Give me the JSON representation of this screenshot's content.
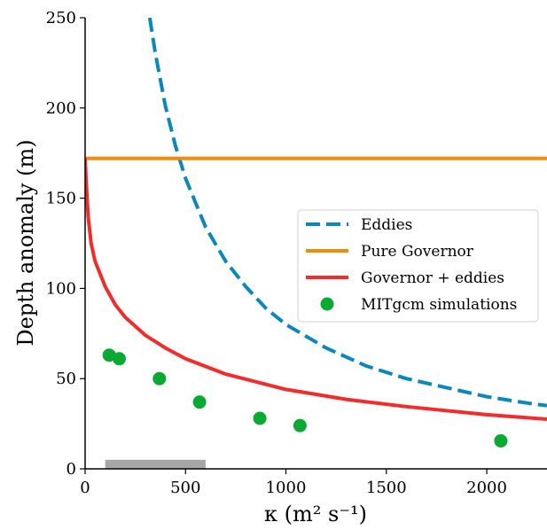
{
  "chart_data": {
    "type": "line",
    "xlabel": "κ (m² s⁻¹)",
    "ylabel": "Depth anomaly (m)",
    "xlim": [
      0,
      2300
    ],
    "ylim": [
      0,
      250
    ],
    "xticks": [
      0,
      500,
      1000,
      1500,
      2000
    ],
    "yticks": [
      0,
      50,
      100,
      150,
      200,
      250
    ],
    "xtick_labels": [
      "0",
      "500",
      "1000",
      "1500",
      "2000"
    ],
    "ytick_labels": [
      "0",
      "50",
      "100",
      "150",
      "200",
      "250"
    ],
    "grid": false,
    "legend_position": "center-right",
    "series": [
      {
        "name": "Eddies",
        "kind": "line",
        "style": "dashed",
        "color": "#0a87bd",
        "x": [
          322,
          350,
          400,
          450,
          500,
          600,
          700,
          800,
          900,
          1000,
          1200,
          1400,
          1600,
          1800,
          2000,
          2200,
          2300
        ],
        "y": [
          250,
          230,
          201,
          179,
          161,
          134,
          115,
          101,
          89,
          80,
          67,
          57,
          50,
          45,
          40,
          36.5,
          35
        ]
      },
      {
        "name": "Pure Governor",
        "kind": "line",
        "style": "solid",
        "color": "#f58a0b",
        "x": [
          0,
          2300
        ],
        "y": [
          172,
          172
        ]
      },
      {
        "name": "Governor + eddies",
        "kind": "line",
        "style": "solid",
        "color": "#f22b2b",
        "x": [
          0,
          5,
          15,
          30,
          50,
          100,
          150,
          200,
          300,
          400,
          500,
          700,
          1000,
          1300,
          1600,
          2000,
          2300
        ],
        "y": [
          172,
          160,
          140,
          125,
          115,
          101,
          91,
          84,
          74,
          67,
          61,
          52.5,
          44,
          38.5,
          34.5,
          30,
          27.5
        ]
      },
      {
        "name": "MITgcm simulations",
        "kind": "scatter",
        "color": "#0aaa32",
        "x": [
          120,
          170,
          370,
          570,
          870,
          1070,
          2070
        ],
        "y": [
          63,
          61,
          50,
          37,
          28,
          24,
          15.5
        ]
      }
    ],
    "shaded_bar": {
      "color": "#a6a6a6",
      "x_range": [
        100,
        600
      ],
      "y_range": [
        0,
        5
      ]
    }
  }
}
